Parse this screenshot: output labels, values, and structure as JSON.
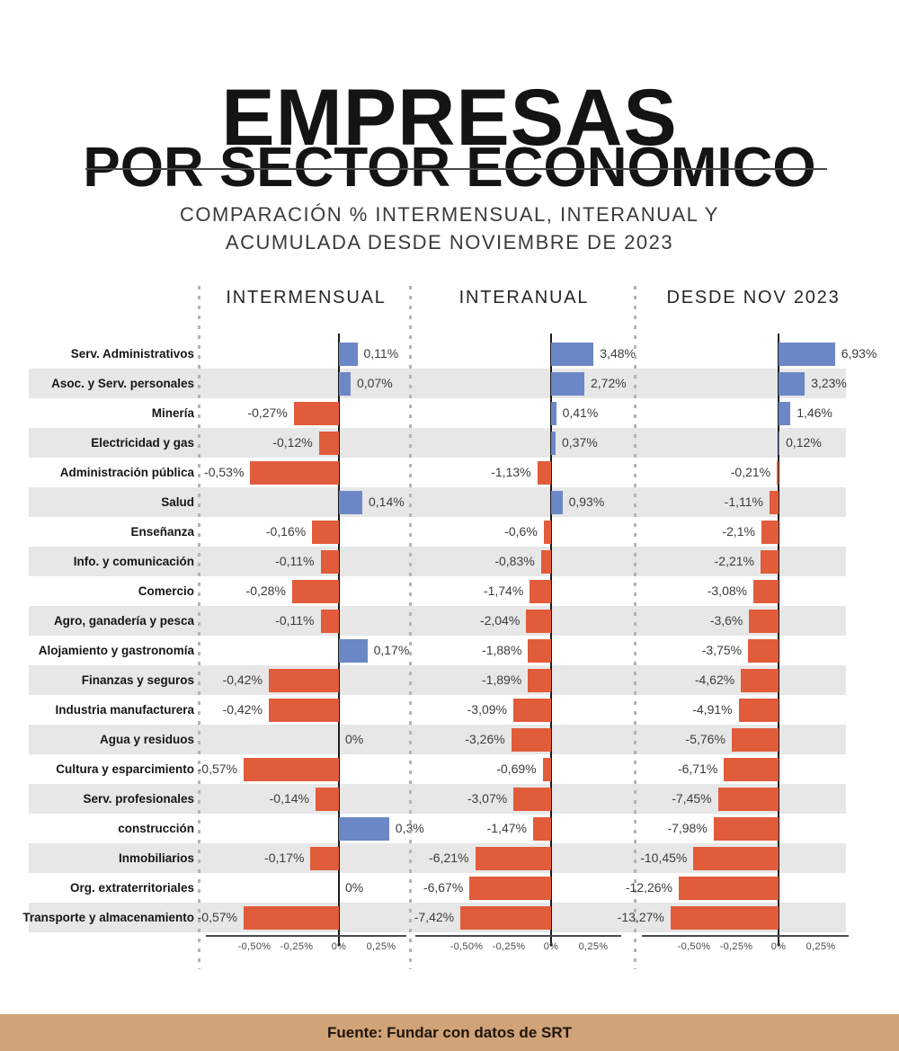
{
  "header": {
    "title_line1": "EMPRESAS",
    "title_line2": "POR SECTOR ECONÓMICO",
    "subtitle_line1": "COMPARACIÓN % INTERMENSUAL, INTERANUAL Y",
    "subtitle_line2": "ACUMULADA DESDE NOVIEMBRE DE 2023"
  },
  "footer": {
    "source": "Fuente: Fundar con datos de SRT"
  },
  "colors": {
    "positive": "#6C87C6",
    "negative": "#E15C3B",
    "row_stripe": "#E7E7E7",
    "footer_band": "#D0A378",
    "zero_line": "#1c1c1c",
    "axis_line": "#4a4a4a",
    "dotted_separator": "#b4b4b4"
  },
  "chart_data": {
    "type": "bar",
    "orientation": "horizontal",
    "title": "EMPRESAS POR SECTOR ECONÓMICO",
    "subtitle": "COMPARACIÓN % INTERMENSUAL, INTERANUAL Y ACUMULADA DESDE NOVIEMBRE DE 2023",
    "categories": [
      "Serv. Administrativos",
      "Asoc. y Serv. personales",
      "Minería",
      "Electricidad y gas",
      "Administración pública",
      "Salud",
      "Enseñanza",
      "Info. y comunicación",
      "Comercio",
      "Agro, ganadería y pesca",
      "Alojamiento y gastronomía",
      "Finanzas y seguros",
      "Industria manufacturera",
      "Agua y residuos",
      "Cultura y esparcimiento",
      "Serv. profesionales",
      "construcción",
      "Inmobiliarios",
      "Org. extraterritoriales",
      "Transporte y almacenamiento"
    ],
    "series": [
      {
        "name": "INTERMENSUAL",
        "values": [
          0.11,
          0.07,
          -0.27,
          -0.12,
          -0.53,
          0.14,
          -0.16,
          -0.11,
          -0.28,
          -0.11,
          0.17,
          -0.42,
          -0.42,
          0,
          -0.57,
          -0.14,
          0.3,
          -0.17,
          0,
          -0.57
        ],
        "labels": [
          "0,11%",
          "0,07%",
          "-0,27%",
          "-0,12%",
          "-0,53%",
          "0,14%",
          "-0,16%",
          "-0,11%",
          "-0,28%",
          "-0,11%",
          "0,17%",
          "-0,42%",
          "-0,42%",
          "0%",
          "-0,57%",
          "-0,14%",
          "0,3%",
          "-0,17%",
          "0%",
          "-0,57%"
        ]
      },
      {
        "name": "INTERANUAL",
        "values": [
          3.48,
          2.72,
          0.41,
          0.37,
          -1.13,
          0.93,
          -0.6,
          -0.83,
          -1.74,
          -2.04,
          -1.88,
          -1.89,
          -3.09,
          -3.26,
          -0.69,
          -3.07,
          -1.47,
          -6.21,
          -6.67,
          -7.42
        ],
        "labels": [
          "3,48%",
          "2,72%",
          "0,41%",
          "0,37%",
          "-1,13%",
          "0,93%",
          "-0,6%",
          "-0,83%",
          "-1,74%",
          "-2,04%",
          "-1,88%",
          "-1,89%",
          "-3,09%",
          "-3,26%",
          "-0,69%",
          "-3,07%",
          "-1,47%",
          "-6,21%",
          "-6,67%",
          "-7,42%"
        ]
      },
      {
        "name": "DESDE NOV 2023",
        "values": [
          6.93,
          3.23,
          1.46,
          0.12,
          -0.21,
          -1.11,
          -2.1,
          -2.21,
          -3.08,
          -3.6,
          -3.75,
          -4.62,
          -4.91,
          -5.76,
          -6.71,
          -7.45,
          -7.98,
          -10.45,
          -12.26,
          -13.27
        ],
        "labels": [
          "6,93%",
          "3,23%",
          "1,46%",
          "0,12%",
          "-0,21%",
          "-1,11%",
          "-2,1%",
          "-2,21%",
          "-3,08%",
          "-3,6%",
          "-3,75%",
          "-4,62%",
          "-4,91%",
          "-5,76%",
          "-6,71%",
          "-7,45%",
          "-7,98%",
          "-10,45%",
          "-12,26%",
          "-13,27%"
        ]
      }
    ],
    "axis_ticks": [
      "-0,50%",
      "-0,25%",
      "0%",
      "0,25%"
    ],
    "legend_position": "none",
    "grid": "row-stripes"
  }
}
